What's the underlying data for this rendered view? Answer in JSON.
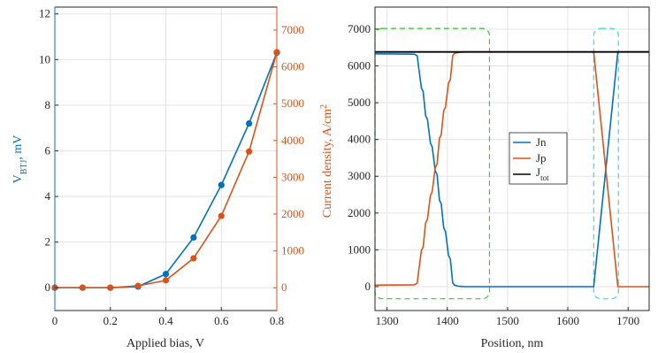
{
  "colors": {
    "blue": "#0072BD",
    "orange": "#D95319",
    "black": "#000000",
    "green_dash": "#33CC33",
    "cyan_dash": "#33DDDD",
    "axis": "#262626",
    "grid": "#e3e3e3"
  },
  "chart_data": [
    {
      "type": "line",
      "xlabel": "Applied bias, V",
      "ylabel_left_main": "V",
      "ylabel_left_sub": "BTJ",
      "ylabel_left_suffix": ", mV",
      "ylabel_right_main": "Current density, A/cm",
      "ylabel_right_sup": "2",
      "xlim": [
        0,
        0.8
      ],
      "ylim_left": [
        -1,
        12.3
      ],
      "ylim_right": [
        -620,
        7625
      ],
      "xticks": [
        "0",
        "0.2",
        "0.4",
        "0.6",
        "0.8"
      ],
      "xtick_values": [
        0,
        0.2,
        0.4,
        0.6,
        0.8
      ],
      "yticks_left": [
        "0",
        "2",
        "4",
        "6",
        "8",
        "10",
        "12"
      ],
      "ytick_left_values": [
        0,
        2,
        4,
        6,
        8,
        10,
        12
      ],
      "yticks_right": [
        "0",
        "1000",
        "2000",
        "3000",
        "4000",
        "5000",
        "6000",
        "7000"
      ],
      "ytick_right_values": [
        0,
        1000,
        2000,
        3000,
        4000,
        5000,
        6000,
        7000
      ],
      "grid": true,
      "series": [
        {
          "axis": "left",
          "color": "blue",
          "x": [
            0,
            0.1,
            0.2,
            0.3,
            0.4,
            0.5,
            0.6,
            0.7,
            0.8
          ],
          "y": [
            0,
            0,
            0,
            0.05,
            0.6,
            2.2,
            4.5,
            7.2,
            10.3
          ]
        },
        {
          "axis": "right",
          "color": "orange",
          "x": [
            0,
            0.1,
            0.2,
            0.3,
            0.4,
            0.5,
            0.6,
            0.7,
            0.8
          ],
          "y": [
            0,
            0,
            0,
            50,
            200,
            800,
            1950,
            3700,
            6400
          ]
        }
      ]
    },
    {
      "type": "line",
      "xlabel": "Position, nm",
      "xlim": [
        1280,
        1735
      ],
      "ylim": [
        -650,
        7600
      ],
      "xticks": [
        "1300",
        "1400",
        "1500",
        "1600",
        "1700"
      ],
      "xtick_values": [
        1300,
        1400,
        1500,
        1600,
        1700
      ],
      "yticks": [
        "0",
        "1000",
        "2000",
        "3000",
        "4000",
        "5000",
        "6000",
        "7000"
      ],
      "ytick_values": [
        0,
        1000,
        2000,
        3000,
        4000,
        5000,
        6000,
        7000
      ],
      "grid": true,
      "legend": "center",
      "legend_entries": [
        {
          "name": "Jn",
          "color": "blue"
        },
        {
          "name": "Jp",
          "color": "orange"
        },
        {
          "name": "J",
          "sub": "tot",
          "color": "black"
        }
      ],
      "series": [
        {
          "name": "Jn",
          "color": "blue",
          "x": [
            1280,
            1345,
            1350,
            1353,
            1357,
            1360,
            1364,
            1367,
            1372,
            1375,
            1380,
            1383,
            1387,
            1390,
            1394,
            1397,
            1402,
            1405,
            1409,
            1412,
            1416,
            1420,
            1423,
            1426,
            1429,
            1643,
            1683,
            1735
          ],
          "y": [
            6330,
            6320,
            6280,
            5900,
            5400,
            5300,
            4650,
            4550,
            3900,
            3800,
            3150,
            3050,
            2350,
            2250,
            1600,
            1500,
            850,
            750,
            100,
            40,
            20,
            10,
            5,
            5,
            0,
            0,
            6380,
            6380
          ]
        },
        {
          "name": "Jp",
          "color": "orange",
          "x": [
            1280,
            1345,
            1350,
            1353,
            1357,
            1360,
            1364,
            1367,
            1372,
            1375,
            1380,
            1383,
            1387,
            1390,
            1394,
            1397,
            1402,
            1405,
            1409,
            1412,
            1416,
            1420,
            1423,
            1426,
            1429,
            1643,
            1683,
            1735
          ],
          "y": [
            40,
            50,
            90,
            480,
            980,
            1080,
            1730,
            1830,
            2480,
            2580,
            3230,
            3330,
            4030,
            4130,
            4780,
            4880,
            5530,
            5630,
            6280,
            6340,
            6360,
            6370,
            6375,
            6375,
            6380,
            6380,
            0,
            0
          ]
        },
        {
          "name": "Jtot",
          "color": "black",
          "x": [
            1280,
            1735
          ],
          "y": [
            6380,
            6380
          ]
        }
      ],
      "annotations": [
        {
          "type": "dashed-rounded-rect",
          "color": "green_dash",
          "x0": 1280,
          "x1": 1470,
          "y0": -330,
          "y1": 7020
        },
        {
          "type": "dashed-rounded-rect",
          "color": "cyan_dash",
          "x0": 1643,
          "x1": 1684,
          "y0": -330,
          "y1": 7020
        }
      ]
    }
  ]
}
